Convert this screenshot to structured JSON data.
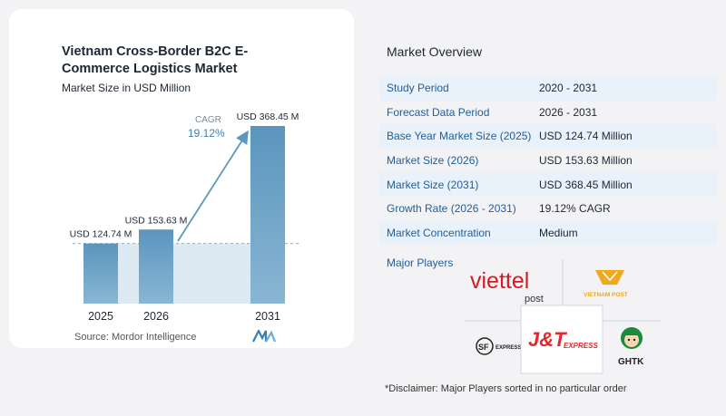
{
  "chart_data": {
    "type": "bar",
    "title": "Vietnam Cross-Border B2C E-Commerce Logistics Market",
    "subtitle": "Market Size in USD Million",
    "categories": [
      "2025",
      "2026",
      "2031"
    ],
    "values": [
      124.74,
      153.63,
      368.45
    ],
    "value_labels": [
      "USD 124.74 M",
      "USD 153.63 M",
      "USD 368.45 M"
    ],
    "cagr_label": "CAGR",
    "cagr_value": "19.12%",
    "ylim": [
      0,
      368.45
    ],
    "grid": false,
    "colors": {
      "bar": "#5b97be",
      "bar_light": "#86b4d3",
      "band": "#dde9f3",
      "arrow": "#5b97be"
    }
  },
  "source": "Source: Mordor Intelligence",
  "overview": {
    "title": "Market Overview",
    "rows": [
      {
        "label": "Study Period",
        "value": "2020 - 2031"
      },
      {
        "label": "Forecast Data Period",
        "value": "2026 - 2031"
      },
      {
        "label": "Base Year Market Size (2025)",
        "value": "USD 124.74 Million"
      },
      {
        "label": "Market Size (2026)",
        "value": "USD 153.63 Million"
      },
      {
        "label": "Market Size (2031)",
        "value": "USD 368.45 Million"
      },
      {
        "label": "Growth Rate (2026 - 2031)",
        "value": "19.12% CAGR"
      },
      {
        "label": "Market Concentration",
        "value": "Medium"
      }
    ]
  },
  "players": {
    "title": "Major Players",
    "logos": {
      "viettel_main": "viettel",
      "viettel_sub": "post",
      "vnpost": "VIETNAM POST",
      "sf": "SF",
      "sf_sub": "EXPRESS",
      "jt": "J&T",
      "jt_sub": "EXPRESS",
      "ghtk": "GHTK"
    }
  },
  "disclaimer": "*Disclaimer: Major Players sorted in no particular order"
}
